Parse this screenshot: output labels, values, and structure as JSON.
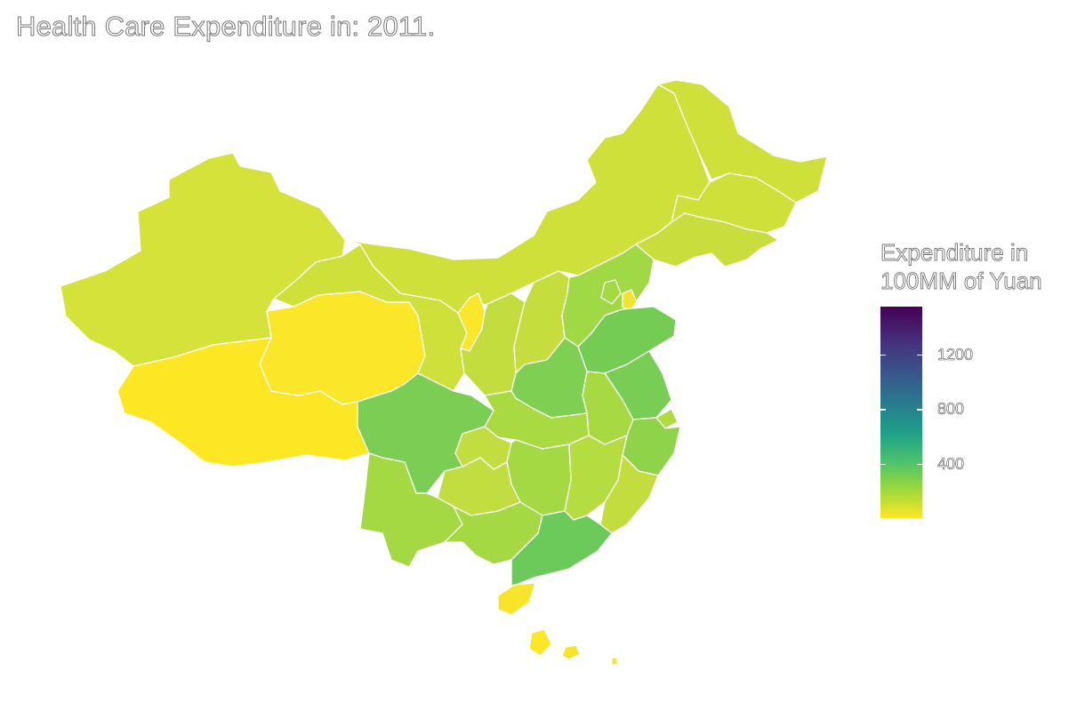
{
  "title": "Health Care Expenditure in: 2011.",
  "legend": {
    "title_line1": "Expenditure in",
    "title_line2": "100MM of Yuan",
    "scale_min": 0,
    "scale_max": 1550,
    "ticks": [
      {
        "value": 400,
        "label": "400"
      },
      {
        "value": 800,
        "label": "800"
      },
      {
        "value": 1200,
        "label": "1200"
      }
    ],
    "palette": "viridis-reversed"
  },
  "colors": {
    "yellow": "#fde725",
    "yellow_green": "#d0e03a",
    "light_green": "#b8de3f",
    "lime": "#a5d943",
    "green": "#7ed051",
    "mid_green": "#6cca5a"
  },
  "provinces": [
    {
      "name": "Heilongjiang",
      "fill": "#cfe03a"
    },
    {
      "name": "Jilin",
      "fill": "#cfe03a"
    },
    {
      "name": "Liaoning",
      "fill": "#c9de3d"
    },
    {
      "name": "Inner Mongolia",
      "fill": "#cfe03a"
    },
    {
      "name": "Xinjiang",
      "fill": "#d4e23a"
    },
    {
      "name": "Tibet",
      "fill": "#fde725"
    },
    {
      "name": "Qinghai",
      "fill": "#fbe62a"
    },
    {
      "name": "Gansu",
      "fill": "#cfe03a"
    },
    {
      "name": "Ningxia",
      "fill": "#fbe62a"
    },
    {
      "name": "Shaanxi",
      "fill": "#c4dd3e"
    },
    {
      "name": "Shanxi",
      "fill": "#c6dd3e"
    },
    {
      "name": "Hebei",
      "fill": "#a0d945"
    },
    {
      "name": "Beijing",
      "fill": "#a5d943"
    },
    {
      "name": "Tianjin",
      "fill": "#f2e42c"
    },
    {
      "name": "Shandong",
      "fill": "#74cc55"
    },
    {
      "name": "Henan",
      "fill": "#7ecf52"
    },
    {
      "name": "Jiangsu",
      "fill": "#78cd54"
    },
    {
      "name": "Anhui",
      "fill": "#a7da42"
    },
    {
      "name": "Shanghai",
      "fill": "#b0dc41"
    },
    {
      "name": "Zhejiang",
      "fill": "#8fd34a"
    },
    {
      "name": "Hubei",
      "fill": "#a9da42"
    },
    {
      "name": "Sichuan",
      "fill": "#7bcd53"
    },
    {
      "name": "Chongqing",
      "fill": "#c2dd3f"
    },
    {
      "name": "Hunan",
      "fill": "#a5d943"
    },
    {
      "name": "Jiangxi",
      "fill": "#b5dc41"
    },
    {
      "name": "Fujian",
      "fill": "#c4dd3e"
    },
    {
      "name": "Guangdong",
      "fill": "#6cca5a"
    },
    {
      "name": "Guangxi",
      "fill": "#a5d943"
    },
    {
      "name": "Guizhou",
      "fill": "#c2dd3f"
    },
    {
      "name": "Yunnan",
      "fill": "#a5d943"
    },
    {
      "name": "Hainan",
      "fill": "#f8e52b"
    },
    {
      "name": "Taiwan",
      "fill": "#fde725"
    }
  ]
}
